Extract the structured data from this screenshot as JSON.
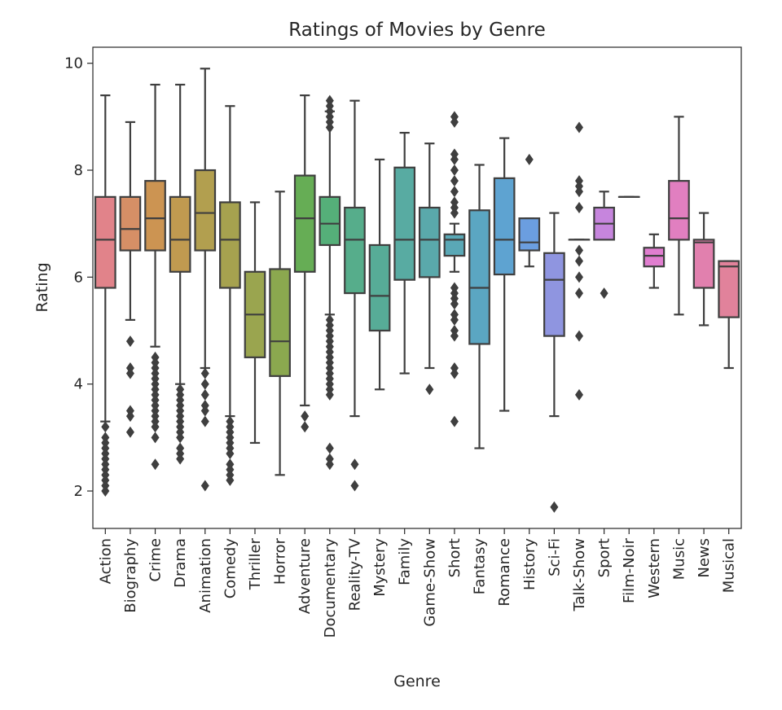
{
  "chart_data": {
    "type": "box",
    "title": "Ratings of Movies by Genre",
    "xlabel": "Genre",
    "ylabel": "Rating",
    "ylim": [
      1.3,
      10.3
    ],
    "yticks": [
      2,
      4,
      6,
      8,
      10
    ],
    "grid": false,
    "legend": "none",
    "categories": [
      "Action",
      "Biography",
      "Crime",
      "Drama",
      "Animation",
      "Comedy",
      "Thriller",
      "Horror",
      "Adventure",
      "Documentary",
      "Reality-TV",
      "Mystery",
      "Family",
      "Game-Show",
      "Short",
      "Fantasy",
      "Romance",
      "History",
      "Sci-Fi",
      "Talk-Show",
      "Sport",
      "Film-Noir",
      "Western",
      "Music",
      "News",
      "Musical"
    ],
    "colors": [
      "#e1838a",
      "#d68f66",
      "#cc9452",
      "#c09a50",
      "#b29f4f",
      "#a6a24f",
      "#9aa54f",
      "#8ba84f",
      "#66ad55",
      "#55af79",
      "#56ad8b",
      "#57ac97",
      "#58aba2",
      "#5aa9ab",
      "#5aa8b6",
      "#5ba6c2",
      "#5ea3d1",
      "#6b9ee0",
      "#8f95e0",
      "#ad8de0",
      "#c685dd",
      "#d980d7",
      "#e17ed0",
      "#e17fc0",
      "#e180ae",
      "#e1829b"
    ],
    "boxes": [
      {
        "q1": 5.8,
        "median": 6.7,
        "q3": 7.5,
        "whislo": 3.3,
        "whishi": 9.4,
        "fliers": [
          3.2,
          3.0,
          2.9,
          2.8,
          2.7,
          2.6,
          2.5,
          2.4,
          2.3,
          2.2,
          2.1,
          2.0
        ]
      },
      {
        "q1": 6.5,
        "median": 6.9,
        "q3": 7.5,
        "whislo": 5.2,
        "whishi": 8.9,
        "fliers": [
          4.8,
          4.3,
          4.2,
          3.5,
          3.4,
          3.1
        ]
      },
      {
        "q1": 6.5,
        "median": 7.1,
        "q3": 7.8,
        "whislo": 4.7,
        "whishi": 9.6,
        "fliers": [
          4.5,
          4.4,
          4.3,
          4.2,
          4.1,
          4.0,
          3.9,
          3.8,
          3.7,
          3.6,
          3.5,
          3.4,
          3.3,
          3.2,
          3.0,
          2.5
        ]
      },
      {
        "q1": 6.1,
        "median": 6.7,
        "q3": 7.5,
        "whislo": 4.0,
        "whishi": 9.6,
        "fliers": [
          3.9,
          3.8,
          3.7,
          3.6,
          3.5,
          3.4,
          3.3,
          3.2,
          3.1,
          3.0,
          2.8,
          2.7,
          2.6
        ]
      },
      {
        "q1": 6.5,
        "median": 7.2,
        "q3": 8.0,
        "whislo": 4.3,
        "whishi": 9.9,
        "fliers": [
          4.2,
          4.0,
          3.8,
          3.6,
          3.5,
          3.3,
          2.1
        ]
      },
      {
        "q1": 5.8,
        "median": 6.7,
        "q3": 7.4,
        "whislo": 3.4,
        "whishi": 9.2,
        "fliers": [
          3.3,
          3.2,
          3.1,
          3.0,
          2.9,
          2.8,
          2.7,
          2.5,
          2.4,
          2.3,
          2.2
        ]
      },
      {
        "q1": 4.5,
        "median": 5.3,
        "q3": 6.1,
        "whislo": 2.9,
        "whishi": 7.4,
        "fliers": []
      },
      {
        "q1": 4.15,
        "median": 4.8,
        "q3": 6.15,
        "whislo": 2.3,
        "whishi": 7.6,
        "fliers": []
      },
      {
        "q1": 6.1,
        "median": 7.1,
        "q3": 7.9,
        "whislo": 3.6,
        "whishi": 9.4,
        "fliers": [
          3.4,
          3.2
        ]
      },
      {
        "q1": 6.6,
        "median": 7.0,
        "q3": 7.5,
        "whislo": 5.3,
        "whishi": 9.1,
        "fliers": [
          9.3,
          9.2,
          9.1,
          9.0,
          8.9,
          8.8,
          5.2,
          5.1,
          5.0,
          4.9,
          4.8,
          4.7,
          4.6,
          4.5,
          4.4,
          4.3,
          4.2,
          4.1,
          4.0,
          3.9,
          3.8,
          2.8,
          2.6,
          2.5
        ]
      },
      {
        "q1": 5.7,
        "median": 6.7,
        "q3": 7.3,
        "whislo": 3.4,
        "whishi": 9.3,
        "fliers": [
          2.5,
          2.1
        ]
      },
      {
        "q1": 5.0,
        "median": 5.65,
        "q3": 6.6,
        "whislo": 3.9,
        "whishi": 8.2,
        "fliers": []
      },
      {
        "q1": 5.95,
        "median": 6.7,
        "q3": 8.05,
        "whislo": 4.2,
        "whishi": 8.7,
        "fliers": []
      },
      {
        "q1": 6.0,
        "median": 6.7,
        "q3": 7.3,
        "whislo": 4.3,
        "whishi": 8.5,
        "fliers": [
          3.9
        ]
      },
      {
        "q1": 6.4,
        "median": 6.7,
        "q3": 6.8,
        "whislo": 6.1,
        "whishi": 7.0,
        "fliers": [
          9.0,
          8.9,
          8.3,
          8.2,
          8.0,
          7.8,
          7.6,
          7.4,
          7.3,
          7.2,
          5.8,
          5.7,
          5.6,
          5.5,
          5.3,
          5.2,
          5.0,
          4.9,
          4.3,
          4.2,
          3.3
        ]
      },
      {
        "q1": 4.75,
        "median": 5.8,
        "q3": 7.25,
        "whislo": 2.8,
        "whishi": 8.1,
        "fliers": []
      },
      {
        "q1": 6.05,
        "median": 6.7,
        "q3": 7.85,
        "whislo": 3.5,
        "whishi": 8.6,
        "fliers": []
      },
      {
        "q1": 6.5,
        "median": 6.65,
        "q3": 7.1,
        "whislo": 6.2,
        "whishi": 7.1,
        "fliers": [
          8.2
        ]
      },
      {
        "q1": 4.9,
        "median": 5.95,
        "q3": 6.45,
        "whislo": 3.4,
        "whishi": 7.2,
        "fliers": [
          1.7
        ]
      },
      {
        "q1": 6.7,
        "median": 6.7,
        "q3": 6.7,
        "whislo": 6.7,
        "whishi": 6.7,
        "fliers": [
          8.8,
          7.8,
          7.7,
          7.6,
          7.3,
          6.5,
          6.3,
          6.0,
          5.7,
          4.9,
          3.8
        ]
      },
      {
        "q1": 6.7,
        "median": 7.0,
        "q3": 7.3,
        "whislo": 6.7,
        "whishi": 7.6,
        "fliers": [
          5.7
        ]
      },
      {
        "q1": 7.5,
        "median": 7.5,
        "q3": 7.5,
        "whislo": 7.5,
        "whishi": 7.5,
        "fliers": []
      },
      {
        "q1": 6.2,
        "median": 6.4,
        "q3": 6.55,
        "whislo": 5.8,
        "whishi": 6.8,
        "fliers": []
      },
      {
        "q1": 6.7,
        "median": 7.1,
        "q3": 7.8,
        "whislo": 5.3,
        "whishi": 9.0,
        "fliers": []
      },
      {
        "q1": 5.8,
        "median": 6.65,
        "q3": 6.7,
        "whislo": 5.1,
        "whishi": 7.2,
        "fliers": []
      },
      {
        "q1": 5.25,
        "median": 6.2,
        "q3": 6.3,
        "whislo": 4.3,
        "whishi": 6.3,
        "fliers": []
      }
    ]
  }
}
